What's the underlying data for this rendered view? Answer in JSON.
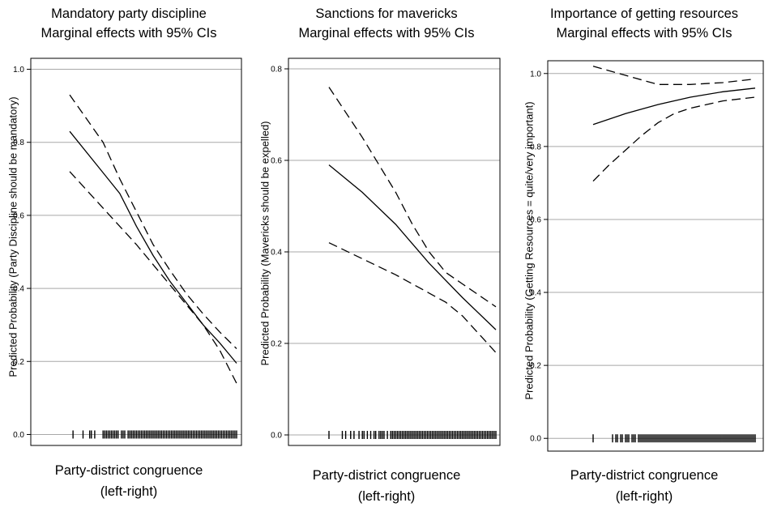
{
  "chart_data": [
    {
      "type": "line",
      "title": "Mandatory party discipline",
      "subtitle": "Marginal effects with 95% CIs",
      "xlabel_line1": "Party-district congruence",
      "xlabel_line2": "(left-right)",
      "ylabel": "Predicted Probability (Party Discipline should be mandatory)",
      "xlim": [
        0,
        1
      ],
      "ylim": [
        -0.03,
        1.03
      ],
      "yticks": [
        0.0,
        0.2,
        0.4,
        0.6,
        0.8,
        1.0
      ],
      "ytick_labels": [
        "0.0",
        "0.2",
        "0.4",
        "0.6",
        "0.8",
        "1.0"
      ],
      "grid": true,
      "series": [
        {
          "role": "estimate",
          "x": [
            0,
            0.3,
            0.4,
            0.5,
            0.6,
            0.7,
            0.8,
            0.9,
            1.0
          ],
          "y": [
            0.83,
            0.66,
            0.57,
            0.49,
            0.42,
            0.36,
            0.3,
            0.25,
            0.195
          ]
        },
        {
          "role": "upper_ci",
          "x": [
            0,
            0.2,
            0.3,
            0.4,
            0.5,
            0.6,
            0.7,
            0.8,
            0.9,
            1.0
          ],
          "y": [
            0.93,
            0.8,
            0.7,
            0.61,
            0.52,
            0.45,
            0.385,
            0.33,
            0.28,
            0.235
          ]
        },
        {
          "role": "lower_ci",
          "x": [
            0,
            0.2,
            0.4,
            0.6,
            0.8,
            0.9,
            1.0
          ],
          "y": [
            0.72,
            0.62,
            0.52,
            0.41,
            0.3,
            0.23,
            0.14
          ]
        }
      ],
      "rug": [
        0.02,
        0.08,
        0.12,
        0.13,
        0.15,
        0.2,
        0.21,
        0.22,
        0.23,
        0.24,
        0.25,
        0.26,
        0.27,
        0.28,
        0.29,
        0.31,
        0.32,
        0.33,
        0.35,
        0.36,
        0.37,
        0.38,
        0.39,
        0.4,
        0.41,
        0.42,
        0.43,
        0.44,
        0.45,
        0.46,
        0.47,
        0.48,
        0.49,
        0.5,
        0.51,
        0.52,
        0.53,
        0.54,
        0.55,
        0.56,
        0.57,
        0.58,
        0.59,
        0.6,
        0.61,
        0.62,
        0.63,
        0.64,
        0.65,
        0.66,
        0.67,
        0.68,
        0.69,
        0.7,
        0.71,
        0.72,
        0.73,
        0.74,
        0.75,
        0.76,
        0.77,
        0.78,
        0.79,
        0.8,
        0.81,
        0.82,
        0.83,
        0.84,
        0.85,
        0.86,
        0.87,
        0.88,
        0.89,
        0.9,
        0.91,
        0.92,
        0.93,
        0.94,
        0.95,
        0.96,
        0.97,
        0.98,
        0.99,
        1.0
      ]
    },
    {
      "type": "line",
      "title": "Sanctions for mavericks",
      "subtitle": "Marginal effects with 95% CIs",
      "xlabel_line1": "Party-district congruence",
      "xlabel_line2": "(left-right)",
      "ylabel": "Predicted Probability (Mavericks should be expelled)",
      "xlim": [
        0,
        1
      ],
      "ylim": [
        -0.023,
        0.823
      ],
      "yticks": [
        0.0,
        0.2,
        0.4,
        0.6,
        0.8
      ],
      "ytick_labels": [
        "0.0",
        "0.2",
        "0.4",
        "0.6",
        "0.8"
      ],
      "grid": true,
      "series": [
        {
          "role": "estimate",
          "x": [
            0,
            0.2,
            0.4,
            0.6,
            0.8,
            1.0
          ],
          "y": [
            0.59,
            0.53,
            0.46,
            0.375,
            0.3,
            0.23
          ]
        },
        {
          "role": "upper_ci",
          "x": [
            0,
            0.2,
            0.4,
            0.5,
            0.6,
            0.7,
            0.8,
            1.0
          ],
          "y": [
            0.76,
            0.65,
            0.53,
            0.46,
            0.4,
            0.355,
            0.33,
            0.28
          ]
        },
        {
          "role": "lower_ci",
          "x": [
            0,
            0.2,
            0.4,
            0.6,
            0.7,
            0.8,
            0.9,
            1.0
          ],
          "y": [
            0.42,
            0.385,
            0.35,
            0.31,
            0.29,
            0.26,
            0.22,
            0.18
          ]
        }
      ],
      "rug": [
        0.0,
        0.08,
        0.1,
        0.13,
        0.15,
        0.18,
        0.2,
        0.21,
        0.23,
        0.25,
        0.27,
        0.28,
        0.3,
        0.31,
        0.32,
        0.33,
        0.35,
        0.37,
        0.38,
        0.39,
        0.4,
        0.41,
        0.42,
        0.43,
        0.44,
        0.45,
        0.46,
        0.47,
        0.48,
        0.49,
        0.5,
        0.51,
        0.52,
        0.53,
        0.54,
        0.55,
        0.56,
        0.57,
        0.58,
        0.59,
        0.6,
        0.61,
        0.62,
        0.63,
        0.64,
        0.65,
        0.66,
        0.67,
        0.68,
        0.69,
        0.7,
        0.71,
        0.72,
        0.73,
        0.74,
        0.75,
        0.76,
        0.77,
        0.78,
        0.79,
        0.8,
        0.81,
        0.82,
        0.83,
        0.84,
        0.85,
        0.86,
        0.87,
        0.88,
        0.89,
        0.9,
        0.91,
        0.92,
        0.93,
        0.94,
        0.95,
        0.96,
        0.97,
        0.98,
        0.99,
        1.0
      ]
    },
    {
      "type": "line",
      "title": "Importance of getting resources",
      "subtitle": "Marginal effects with 95% CIs",
      "xlabel_line1": "Party-district congruence",
      "xlabel_line2": "(left-right)",
      "ylabel": "Predicted Probability (Getting Resources = quite/very important)",
      "xlim": [
        0,
        1
      ],
      "ylim": [
        -0.035,
        1.035
      ],
      "yticks": [
        0.0,
        0.2,
        0.4,
        0.6,
        0.8,
        1.0
      ],
      "ytick_labels": [
        "0.0",
        "0.2",
        "0.4",
        "0.6",
        "0.8",
        "1.0"
      ],
      "grid": true,
      "series": [
        {
          "role": "estimate",
          "x": [
            0,
            0.2,
            0.4,
            0.6,
            0.8,
            1.0
          ],
          "y": [
            0.86,
            0.89,
            0.915,
            0.935,
            0.95,
            0.96
          ]
        },
        {
          "role": "upper_ci",
          "x": [
            0,
            0.2,
            0.4,
            0.6,
            0.8,
            1.0
          ],
          "y": [
            1.02,
            0.995,
            0.97,
            0.97,
            0.975,
            0.985
          ]
        },
        {
          "role": "lower_ci",
          "x": [
            0,
            0.1,
            0.2,
            0.3,
            0.4,
            0.5,
            0.6,
            0.8,
            1.0
          ],
          "y": [
            0.705,
            0.75,
            0.79,
            0.83,
            0.865,
            0.89,
            0.905,
            0.925,
            0.935
          ]
        }
      ],
      "rug": [
        0.0,
        0.12,
        0.14,
        0.15,
        0.17,
        0.18,
        0.2,
        0.21,
        0.22,
        0.24,
        0.25,
        0.26,
        0.28,
        0.29,
        0.3,
        0.31,
        0.32,
        0.33,
        0.34,
        0.35,
        0.36,
        0.37,
        0.38,
        0.39,
        0.4,
        0.41,
        0.42,
        0.43,
        0.44,
        0.45,
        0.46,
        0.47,
        0.48,
        0.49,
        0.5,
        0.51,
        0.52,
        0.53,
        0.54,
        0.55,
        0.56,
        0.57,
        0.58,
        0.59,
        0.6,
        0.61,
        0.62,
        0.63,
        0.64,
        0.65,
        0.66,
        0.67,
        0.68,
        0.69,
        0.7,
        0.71,
        0.72,
        0.73,
        0.74,
        0.75,
        0.76,
        0.77,
        0.78,
        0.79,
        0.8,
        0.81,
        0.82,
        0.83,
        0.84,
        0.85,
        0.86,
        0.87,
        0.88,
        0.89,
        0.9,
        0.91,
        0.92,
        0.93,
        0.94,
        0.95,
        0.96,
        0.97,
        0.98,
        0.99,
        1.0
      ]
    }
  ]
}
